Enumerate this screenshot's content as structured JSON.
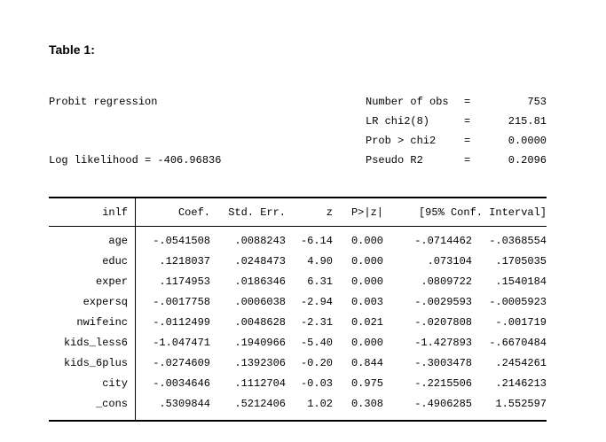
{
  "caption": "Table 1:",
  "summary": {
    "rows": [
      {
        "left": "Probit regression",
        "label": "Number of obs",
        "eq": "=",
        "value": "753"
      },
      {
        "left": "",
        "label": "LR chi2(8)",
        "eq": "=",
        "value": "215.81"
      },
      {
        "left": "",
        "label": "Prob > chi2",
        "eq": "=",
        "value": "0.0000"
      },
      {
        "left": "Log likelihood = -406.96836",
        "label": "Pseudo R2",
        "eq": "=",
        "value": "0.2096"
      }
    ]
  },
  "table": {
    "depvar": "inlf",
    "headers": [
      "Coef.",
      "Std. Err.",
      "z",
      "P>|z|",
      "[95% Conf. Interval]"
    ],
    "rows": [
      {
        "name": "age",
        "coef": "-.0541508",
        "stderr": ".0088243",
        "z": "-6.14",
        "p": "0.000",
        "ci_low": "-.0714462",
        "ci_high": "-.0368554"
      },
      {
        "name": "educ",
        "coef": ".1218037",
        "stderr": ".0248473",
        "z": "4.90",
        "p": "0.000",
        "ci_low": ".073104",
        "ci_high": ".1705035"
      },
      {
        "name": "exper",
        "coef": ".1174953",
        "stderr": ".0186346",
        "z": "6.31",
        "p": "0.000",
        "ci_low": ".0809722",
        "ci_high": ".1540184"
      },
      {
        "name": "expersq",
        "coef": "-.0017758",
        "stderr": ".0006038",
        "z": "-2.94",
        "p": "0.003",
        "ci_low": "-.0029593",
        "ci_high": "-.0005923"
      },
      {
        "name": "nwifeinc",
        "coef": "-.0112499",
        "stderr": ".0048628",
        "z": "-2.31",
        "p": "0.021",
        "ci_low": "-.0207808",
        "ci_high": "-.001719"
      },
      {
        "name": "kids_less6",
        "coef": "-1.047471",
        "stderr": ".1940966",
        "z": "-5.40",
        "p": "0.000",
        "ci_low": "-1.427893",
        "ci_high": "-.6670484"
      },
      {
        "name": "kids_6plus",
        "coef": "-.0274609",
        "stderr": ".1392306",
        "z": "-0.20",
        "p": "0.844",
        "ci_low": "-.3003478",
        "ci_high": ".2454261"
      },
      {
        "name": "city",
        "coef": "-.0034646",
        "stderr": ".1112704",
        "z": "-0.03",
        "p": "0.975",
        "ci_low": "-.2215506",
        "ci_high": ".2146213"
      },
      {
        "name": "_cons",
        "coef": ".5309844",
        "stderr": ".5212406",
        "z": "1.02",
        "p": "0.308",
        "ci_low": "-.4906285",
        "ci_high": "1.552597"
      }
    ]
  }
}
